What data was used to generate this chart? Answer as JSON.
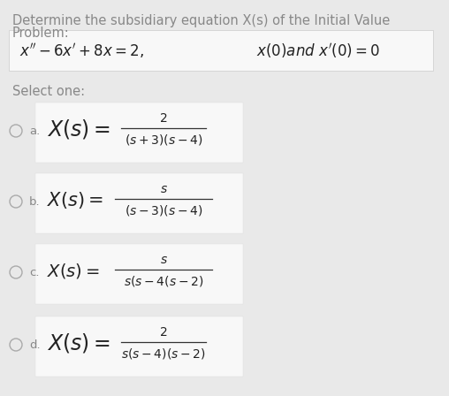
{
  "bg_color": "#e9e9e9",
  "box_color": "#f5f5f5",
  "title_line1": "Determine the subsidiary equation X(s) of the Initial Value",
  "title_line2": "Problem:",
  "title_fontsize": 10.5,
  "title_color": "#888888",
  "select_text": "Select one:",
  "select_fontsize": 10.5,
  "select_color": "#888888",
  "eq_left": "$x'' - 6x' + 8x = 2,$",
  "eq_right": "$x(0)\\mathit{and}\\ x'(0) = 0$",
  "options": [
    {
      "letter": "a.",
      "numerator": "2",
      "denominator": "(s+3)(s-4)",
      "xsz": 17,
      "numsz": 10,
      "densz": 10
    },
    {
      "letter": "b.",
      "numerator": "s",
      "denominator": "(s - 3)(s - 4)",
      "xsz": 15,
      "numsz": 10,
      "densz": 10
    },
    {
      "letter": "c.",
      "numerator": "s",
      "denominator": "s(s - 4(s - 2)",
      "xsz": 14,
      "numsz": 10,
      "densz": 10
    },
    {
      "letter": "d.",
      "numerator": "2",
      "denominator": "s(s-4)(s-2)",
      "xsz": 17,
      "numsz": 10,
      "densz": 10
    }
  ]
}
